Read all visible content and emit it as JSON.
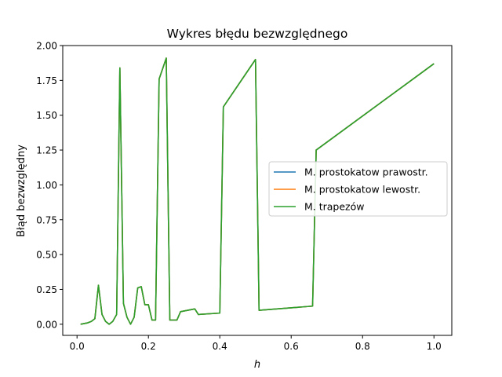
{
  "chart_data": {
    "type": "line",
    "title": "Wykres błędu bezwzględnego",
    "xlabel": "h",
    "ylabel": "Błąd bezwzględny",
    "xlim": [
      -0.04,
      1.05
    ],
    "ylim": [
      -0.08,
      2.0
    ],
    "xticks": [
      0.0,
      0.2,
      0.4,
      0.6,
      0.8,
      1.0
    ],
    "xtick_labels": [
      "0.0",
      "0.2",
      "0.4",
      "0.6",
      "0.8",
      "1.0"
    ],
    "yticks": [
      0.0,
      0.25,
      0.5,
      0.75,
      1.0,
      1.25,
      1.5,
      1.75,
      2.0
    ],
    "ytick_labels": [
      "0.00",
      "0.25",
      "0.50",
      "0.75",
      "1.00",
      "1.25",
      "1.50",
      "1.75",
      "2.00"
    ],
    "grid": false,
    "legend_position": "center-right",
    "x": [
      0.01,
      0.02,
      0.03,
      0.04,
      0.05,
      0.06,
      0.07,
      0.08,
      0.09,
      0.1,
      0.111,
      0.12,
      0.13,
      0.14,
      0.15,
      0.16,
      0.17,
      0.18,
      0.19,
      0.2,
      0.21,
      0.22,
      0.23,
      0.25,
      0.26,
      0.28,
      0.29,
      0.31,
      0.33,
      0.34,
      0.4,
      0.41,
      0.5,
      0.51,
      0.66,
      0.67,
      1.0
    ],
    "series": [
      {
        "name": "M. prostokatow prawostr.",
        "color": "#1f77b4",
        "values": [
          0.0,
          0.005,
          0.01,
          0.02,
          0.04,
          0.28,
          0.07,
          0.02,
          0.0,
          0.02,
          0.07,
          1.84,
          0.15,
          0.05,
          0.0,
          0.05,
          0.26,
          0.27,
          0.14,
          0.14,
          0.03,
          0.03,
          1.76,
          1.91,
          0.03,
          0.03,
          0.09,
          0.1,
          0.11,
          0.07,
          0.08,
          1.56,
          1.9,
          0.1,
          0.13,
          1.25,
          1.87
        ]
      },
      {
        "name": "M. prostokatow lewostr.",
        "color": "#ff7f0e",
        "values": [
          0.0,
          0.005,
          0.01,
          0.02,
          0.04,
          0.28,
          0.07,
          0.02,
          0.0,
          0.02,
          0.07,
          1.84,
          0.15,
          0.05,
          0.0,
          0.05,
          0.26,
          0.27,
          0.14,
          0.14,
          0.03,
          0.03,
          1.76,
          1.91,
          0.03,
          0.03,
          0.09,
          0.1,
          0.11,
          0.07,
          0.08,
          1.56,
          1.9,
          0.1,
          0.13,
          1.25,
          1.87
        ]
      },
      {
        "name": "M. trapezów",
        "color": "#2ca02c",
        "values": [
          0.0,
          0.005,
          0.01,
          0.02,
          0.04,
          0.28,
          0.07,
          0.02,
          0.0,
          0.02,
          0.07,
          1.84,
          0.15,
          0.05,
          0.0,
          0.05,
          0.26,
          0.27,
          0.14,
          0.14,
          0.03,
          0.03,
          1.76,
          1.91,
          0.03,
          0.03,
          0.09,
          0.1,
          0.11,
          0.07,
          0.08,
          1.56,
          1.9,
          0.1,
          0.13,
          1.25,
          1.87
        ]
      }
    ]
  }
}
